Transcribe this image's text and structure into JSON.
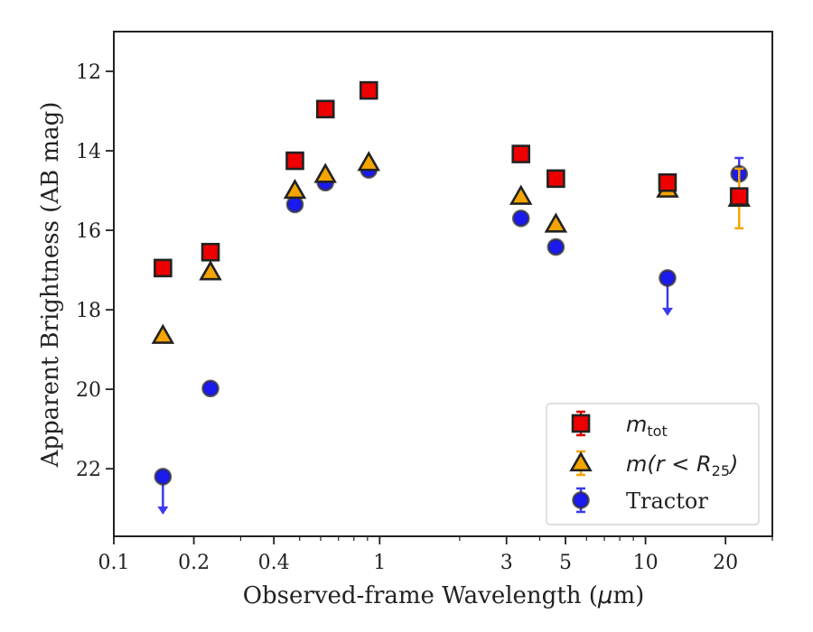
{
  "chart_data": {
    "type": "scatter",
    "xlabel_prefix": "Observed-frame Wavelength (",
    "xlabel_mu": "μ",
    "xlabel_suffix": "m)",
    "ylabel": "Apparent Brightness (AB mag)",
    "x_scale": "log",
    "xlim": [
      0.1,
      30
    ],
    "ylim": [
      23.7,
      11.0
    ],
    "y_inverted": true,
    "x_ticks": [
      {
        "value": 0.1,
        "label": "0.1"
      },
      {
        "value": 0.2,
        "label": "0.2"
      },
      {
        "value": 0.4,
        "label": "0.4"
      },
      {
        "value": 1,
        "label": "1"
      },
      {
        "value": 3,
        "label": "3"
      },
      {
        "value": 5,
        "label": "5"
      },
      {
        "value": 10,
        "label": "10"
      },
      {
        "value": 20,
        "label": "20"
      }
    ],
    "x_minor_ticks": [
      0.3,
      0.5,
      0.6,
      0.7,
      0.8,
      0.9,
      2,
      4,
      6,
      7,
      8,
      9,
      30
    ],
    "y_ticks": [
      {
        "value": 12,
        "label": "12"
      },
      {
        "value": 14,
        "label": "14"
      },
      {
        "value": 16,
        "label": "16"
      },
      {
        "value": 18,
        "label": "18"
      },
      {
        "value": 20,
        "label": "20"
      },
      {
        "value": 22,
        "label": "22"
      }
    ],
    "grid": false,
    "legend_position": "bottom-right",
    "series": [
      {
        "legend_main": "m",
        "legend_sub": "tot",
        "marker": "square",
        "color": "#ee0000",
        "errcolor": "#dd0000",
        "points": [
          {
            "x": 0.153,
            "y": 16.95
          },
          {
            "x": 0.231,
            "y": 16.55
          },
          {
            "x": 0.48,
            "y": 14.25
          },
          {
            "x": 0.625,
            "y": 12.95
          },
          {
            "x": 0.91,
            "y": 12.48
          },
          {
            "x": 3.4,
            "y": 14.08
          },
          {
            "x": 4.6,
            "y": 14.7
          },
          {
            "x": 12.1,
            "y": 14.8
          },
          {
            "x": 22.5,
            "y": 15.15
          }
        ]
      },
      {
        "legend_main": "m(r < R",
        "legend_sub": "25",
        "legend_tail": ")",
        "marker": "triangle",
        "color": "#f5a500",
        "errcolor": "#f5a500",
        "points": [
          {
            "x": 0.153,
            "y": 18.65
          },
          {
            "x": 0.231,
            "y": 17.05
          },
          {
            "x": 0.48,
            "y": 15.0
          },
          {
            "x": 0.625,
            "y": 14.6
          },
          {
            "x": 0.91,
            "y": 14.3
          },
          {
            "x": 3.4,
            "y": 15.15
          },
          {
            "x": 4.6,
            "y": 15.85
          },
          {
            "x": 12.1,
            "y": 14.97
          },
          {
            "x": 22.5,
            "y": 15.2,
            "err": 0.75
          }
        ]
      },
      {
        "legend_main": "Tractor",
        "marker": "circle",
        "color": "#1a1aee",
        "errcolor": "#3a3aee",
        "points": [
          {
            "x": 0.153,
            "y": 22.2,
            "upper_limit": true
          },
          {
            "x": 0.231,
            "y": 19.98
          },
          {
            "x": 0.48,
            "y": 15.35
          },
          {
            "x": 0.625,
            "y": 14.8
          },
          {
            "x": 0.91,
            "y": 14.48
          },
          {
            "x": 3.4,
            "y": 15.7
          },
          {
            "x": 4.6,
            "y": 16.42
          },
          {
            "x": 12.1,
            "y": 17.2,
            "upper_limit": true
          },
          {
            "x": 22.5,
            "y": 14.58,
            "err": 0.4
          }
        ]
      }
    ]
  }
}
